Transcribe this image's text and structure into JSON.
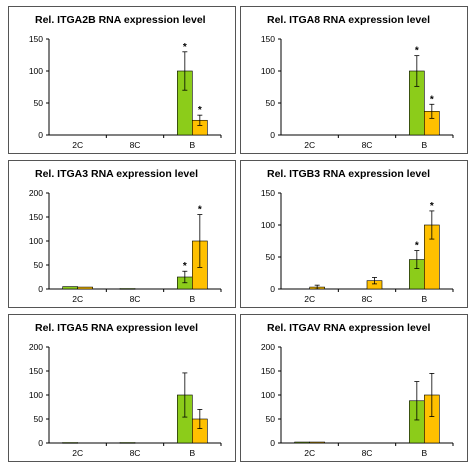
{
  "colors": {
    "series1": "#8ccc1a",
    "series2": "#ffc000",
    "axis": "#000000",
    "border": "#555555"
  },
  "chart_data": [
    {
      "type": "bar",
      "title": "Rel. ITGA2B RNA expression level",
      "categories": [
        "2C",
        "8C",
        "B"
      ],
      "ylim": [
        0,
        150
      ],
      "yticks": [
        0,
        50,
        100,
        150
      ],
      "series": [
        {
          "values": [
            0,
            0,
            100
          ],
          "errors": [
            0,
            0,
            30
          ],
          "stars": [
            "",
            "",
            "*"
          ]
        },
        {
          "values": [
            0,
            0,
            23
          ],
          "errors": [
            0,
            0,
            8
          ],
          "stars": [
            "",
            "",
            "*"
          ]
        }
      ]
    },
    {
      "type": "bar",
      "title": "Rel. ITGA8 RNA expression level",
      "categories": [
        "2C",
        "8C",
        "B"
      ],
      "ylim": [
        0,
        150
      ],
      "yticks": [
        0,
        50,
        100,
        150
      ],
      "series": [
        {
          "values": [
            0,
            0,
            100
          ],
          "errors": [
            0,
            0,
            24
          ],
          "stars": [
            "",
            "",
            "*"
          ]
        },
        {
          "values": [
            0,
            0,
            37
          ],
          "errors": [
            0,
            0,
            11
          ],
          "stars": [
            "",
            "",
            "*"
          ]
        }
      ]
    },
    {
      "type": "bar",
      "title": "Rel. ITGA3 RNA expression level",
      "categories": [
        "2C",
        "8C",
        "B"
      ],
      "ylim": [
        0,
        200
      ],
      "yticks": [
        0,
        50,
        100,
        150,
        200
      ],
      "series": [
        {
          "values": [
            5,
            1,
            25
          ],
          "errors": [
            0,
            0,
            12
          ],
          "stars": [
            "",
            "",
            "*"
          ]
        },
        {
          "values": [
            4,
            0,
            100
          ],
          "errors": [
            0,
            0,
            55
          ],
          "stars": [
            "",
            "",
            "*"
          ]
        }
      ]
    },
    {
      "type": "bar",
      "title": "Rel. ITGB3 RNA expression level",
      "categories": [
        "2C",
        "8C",
        "B"
      ],
      "ylim": [
        0,
        150
      ],
      "yticks": [
        0,
        50,
        100,
        150
      ],
      "series": [
        {
          "values": [
            0,
            0,
            46
          ],
          "errors": [
            0,
            0,
            14
          ],
          "stars": [
            "",
            "",
            "*"
          ]
        },
        {
          "values": [
            3,
            13,
            100
          ],
          "errors": [
            3,
            5,
            22
          ],
          "stars": [
            "",
            "",
            "*"
          ]
        }
      ]
    },
    {
      "type": "bar",
      "title": "Rel. ITGA5 RNA expression level",
      "categories": [
        "2C",
        "8C",
        "B"
      ],
      "ylim": [
        0,
        200
      ],
      "yticks": [
        0,
        50,
        100,
        150,
        200
      ],
      "series": [
        {
          "values": [
            1,
            1,
            100
          ],
          "errors": [
            0,
            0,
            46
          ],
          "stars": [
            "",
            "",
            ""
          ]
        },
        {
          "values": [
            0,
            0,
            50
          ],
          "errors": [
            0,
            0,
            20
          ],
          "stars": [
            "",
            "",
            ""
          ]
        }
      ]
    },
    {
      "type": "bar",
      "title": "Rel. ITGAV RNA expression level",
      "categories": [
        "2C",
        "8C",
        "B"
      ],
      "ylim": [
        0,
        200
      ],
      "yticks": [
        0,
        50,
        100,
        150,
        200
      ],
      "series": [
        {
          "values": [
            2,
            0,
            88
          ],
          "errors": [
            0,
            0,
            40
          ],
          "stars": [
            "",
            "",
            ""
          ]
        },
        {
          "values": [
            2,
            0,
            100
          ],
          "errors": [
            0,
            0,
            45
          ],
          "stars": [
            "",
            "",
            ""
          ]
        }
      ]
    }
  ]
}
